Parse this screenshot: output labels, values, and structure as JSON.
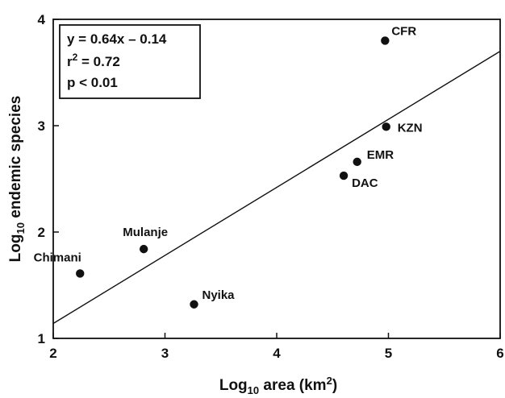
{
  "chart_data": {
    "type": "scatter",
    "xlabel": {
      "prefix": "Log",
      "sub": "10",
      "main": " area (km",
      "sup": "2",
      "suffix": ")"
    },
    "ylabel": {
      "prefix": "Log",
      "sub": "10",
      "main": " endemic species"
    },
    "xlim": [
      2,
      6
    ],
    "ylim": [
      1,
      4
    ],
    "xticks": [
      2,
      3,
      4,
      5,
      6
    ],
    "yticks": [
      1,
      2,
      3,
      4
    ],
    "points": [
      {
        "label": "CFR",
        "x": 4.97,
        "y": 3.8
      },
      {
        "label": "KZN",
        "x": 4.98,
        "y": 2.99
      },
      {
        "label": "EMR",
        "x": 4.72,
        "y": 2.66
      },
      {
        "label": "DAC",
        "x": 4.6,
        "y": 2.53
      },
      {
        "label": "Mulanje",
        "x": 2.81,
        "y": 1.84
      },
      {
        "label": "Chimani",
        "x": 2.24,
        "y": 1.61
      },
      {
        "label": "Nyika",
        "x": 3.26,
        "y": 1.32
      }
    ],
    "regression": {
      "slope": 0.64,
      "intercept": -0.14
    },
    "stats": {
      "equation": "y = 0.64x – 0.14",
      "r2_prefix": "r",
      "r2_sup": "2",
      "r2_value": " = 0.72",
      "p": "p < 0.01"
    },
    "grid": false,
    "point_color": "#111111"
  }
}
